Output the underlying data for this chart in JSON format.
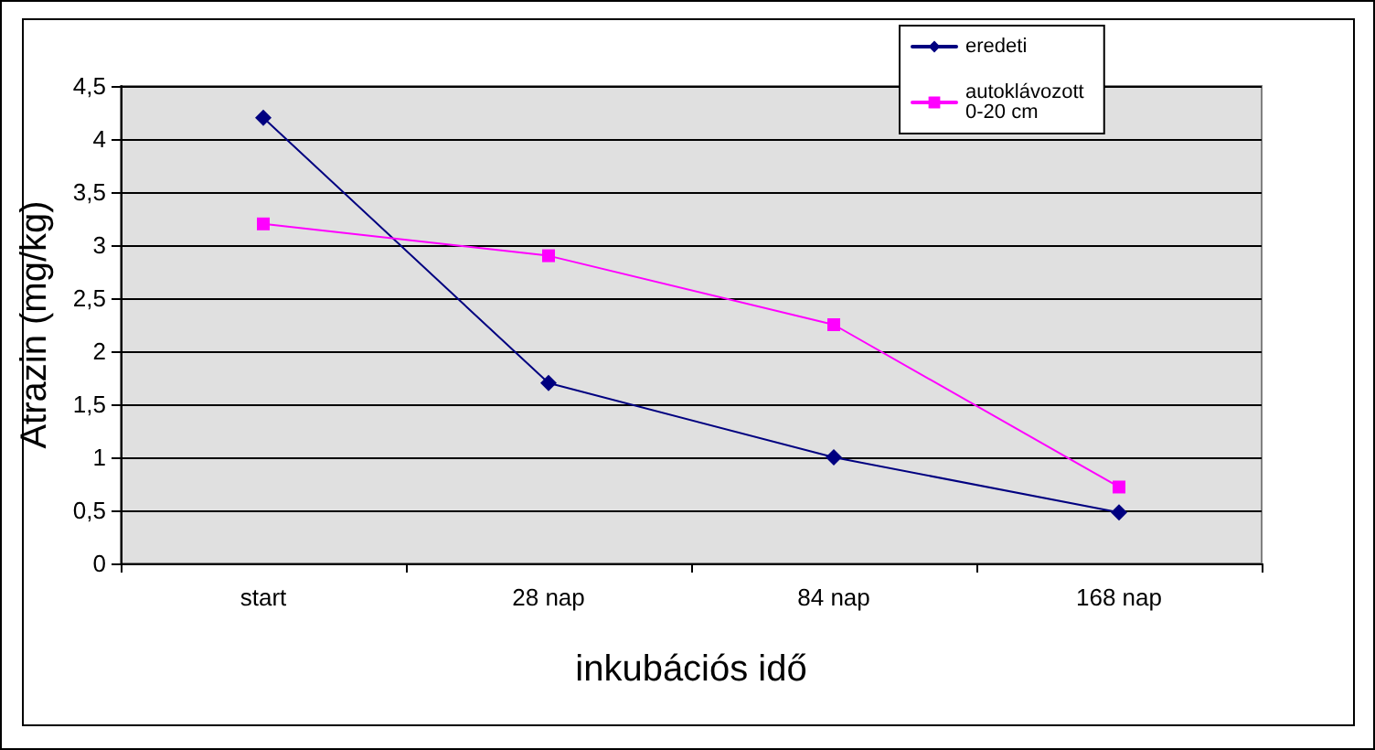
{
  "chart_data": {
    "type": "line",
    "xlabel": "inkubációs idő",
    "ylabel": "Atrazin (mg/kg)",
    "categories": [
      "start",
      "28 nap",
      "84 nap",
      "168 nap"
    ],
    "series": [
      {
        "name": "eredeti",
        "color": "#000080",
        "marker": "diamond",
        "values": [
          4.2,
          1.7,
          1.0,
          0.48
        ]
      },
      {
        "name": "autoklávozott 0-20 cm",
        "color": "#ff00ff",
        "marker": "square",
        "values": [
          3.2,
          2.9,
          2.25,
          0.72
        ]
      }
    ],
    "ylim": [
      0,
      4.5
    ],
    "yticks": [
      0,
      {
        "value": 0.5,
        "label": "0,5"
      },
      1,
      {
        "value": 1.5,
        "label": "1,5"
      },
      2,
      {
        "value": 2.5,
        "label": "2,5"
      },
      3,
      {
        "value": 3.5,
        "label": "3,5"
      },
      4,
      {
        "value": 4.5,
        "label": "4,5"
      }
    ],
    "grid": "y",
    "legend": "top right",
    "line_style": "solid"
  }
}
